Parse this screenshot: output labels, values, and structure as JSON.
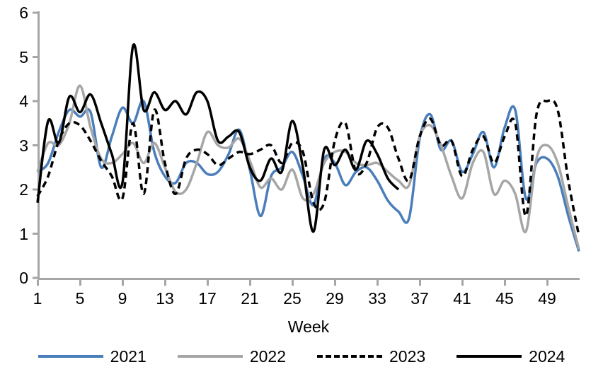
{
  "chart_data": {
    "type": "line",
    "title": "",
    "xlabel": "Week",
    "ylabel": "",
    "xlim": [
      1,
      52
    ],
    "ylim": [
      0,
      6
    ],
    "grid": false,
    "legend_position": "bottom",
    "axis_color": "#a6a6a6",
    "x_ticks": [
      1,
      5,
      9,
      13,
      17,
      21,
      25,
      29,
      33,
      37,
      41,
      45,
      49
    ],
    "y_ticks": [
      0,
      1,
      2,
      3,
      4,
      5,
      6
    ],
    "x": [
      1,
      2,
      3,
      4,
      5,
      6,
      7,
      8,
      9,
      10,
      11,
      12,
      13,
      14,
      15,
      16,
      17,
      18,
      19,
      20,
      21,
      22,
      23,
      24,
      25,
      26,
      27,
      28,
      29,
      30,
      31,
      32,
      33,
      34,
      35,
      36,
      37,
      38,
      39,
      40,
      41,
      42,
      43,
      44,
      45,
      46,
      47,
      48,
      49,
      50,
      51,
      52
    ],
    "series": [
      {
        "name": "2021",
        "color": "#4a7ebb",
        "style": "solid",
        "values": [
          2.4,
          2.6,
          3.3,
          3.8,
          3.65,
          3.75,
          2.5,
          3.2,
          3.85,
          3.5,
          4.0,
          2.85,
          2.3,
          2.15,
          2.6,
          2.6,
          2.35,
          2.4,
          2.8,
          3.35,
          2.45,
          1.4,
          2.3,
          2.5,
          2.85,
          2.3,
          1.65,
          2.7,
          2.6,
          2.1,
          2.4,
          2.5,
          2.2,
          1.75,
          1.5,
          1.35,
          3.15,
          3.7,
          2.9,
          3.1,
          2.4,
          2.8,
          3.3,
          2.5,
          3.4,
          3.8,
          1.8,
          2.6,
          2.7,
          2.3,
          1.4,
          0.6
        ]
      },
      {
        "name": "2022",
        "color": "#a6a6a6",
        "style": "solid",
        "values": [
          2.4,
          3.05,
          3.0,
          3.5,
          4.35,
          3.4,
          2.7,
          2.6,
          2.8,
          3.05,
          2.6,
          3.05,
          2.5,
          1.95,
          2.0,
          2.6,
          3.3,
          3.0,
          2.95,
          3.15,
          2.65,
          2.05,
          2.25,
          2.0,
          2.45,
          1.8,
          1.9,
          2.6,
          2.85,
          2.85,
          2.6,
          2.55,
          2.6,
          2.4,
          2.2,
          2.1,
          3.2,
          3.45,
          3.0,
          2.3,
          1.8,
          2.6,
          2.85,
          1.9,
          2.2,
          1.9,
          1.05,
          2.7,
          3.0,
          2.6,
          1.6,
          0.65
        ]
      },
      {
        "name": "2023",
        "color": "#000000",
        "style": "dashed",
        "values": [
          1.85,
          2.3,
          3.1,
          3.5,
          3.45,
          3.1,
          2.65,
          2.3,
          1.8,
          3.5,
          1.9,
          3.8,
          2.6,
          1.9,
          2.7,
          2.9,
          2.8,
          2.55,
          2.7,
          2.85,
          2.8,
          2.9,
          3.0,
          2.6,
          3.05,
          2.85,
          1.7,
          1.7,
          3.1,
          3.5,
          2.4,
          2.6,
          3.4,
          3.4,
          2.7,
          2.2,
          3.2,
          3.6,
          3.0,
          3.1,
          2.3,
          2.9,
          3.2,
          2.6,
          3.2,
          3.5,
          1.4,
          3.7,
          4.0,
          3.8,
          2.2,
          0.95
        ]
      },
      {
        "name": "2024",
        "color": "#000000",
        "style": "solid",
        "values": [
          1.7,
          3.55,
          3.05,
          4.1,
          3.75,
          4.15,
          3.5,
          2.8,
          2.15,
          5.25,
          3.8,
          4.2,
          3.8,
          4.0,
          3.7,
          4.2,
          4.0,
          3.1,
          3.2,
          3.3,
          2.5,
          2.2,
          2.7,
          2.4,
          3.55,
          2.5,
          1.05,
          2.9,
          2.55,
          2.9,
          2.45,
          3.1,
          2.8,
          2.25,
          2.0
        ]
      }
    ]
  },
  "legend": {
    "items": [
      {
        "label": "2021"
      },
      {
        "label": "2022"
      },
      {
        "label": "2023"
      },
      {
        "label": "2024"
      }
    ]
  }
}
